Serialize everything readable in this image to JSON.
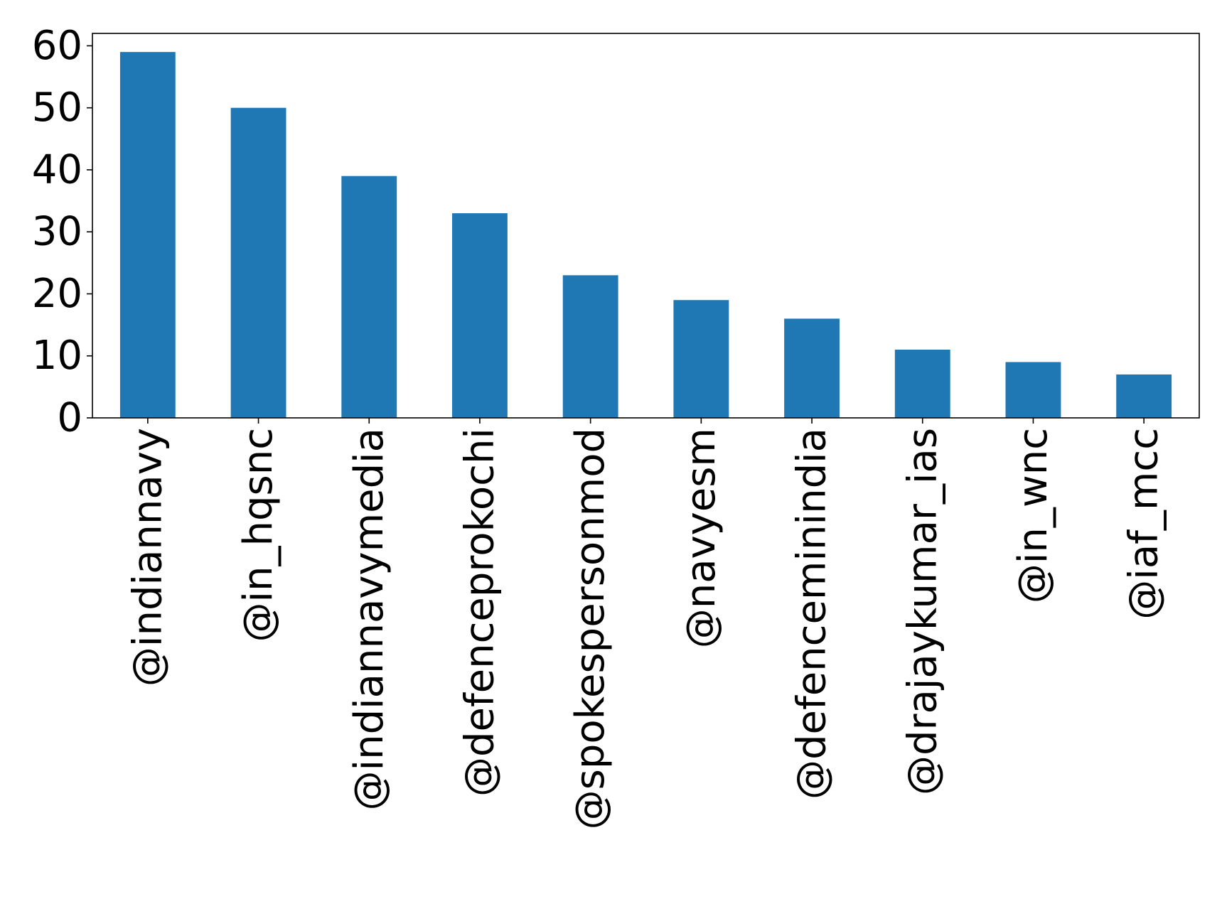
{
  "chart_data": {
    "type": "bar",
    "categories": [
      "@indiannavy",
      "@in_hqsnc",
      "@indiannavymedia",
      "@defenceprokochi",
      "@spokespersonmod",
      "@navyesm",
      "@defenceminindia",
      "@drajaykumar_ias",
      "@in_wnc",
      "@iaf_mcc"
    ],
    "values": [
      59,
      50,
      39,
      33,
      23,
      19,
      16,
      11,
      9,
      7
    ],
    "yticks": [
      "0",
      "10",
      "20",
      "30",
      "40",
      "50",
      "60"
    ],
    "ylim": [
      0,
      62
    ],
    "title": "",
    "xlabel": "",
    "ylabel": "",
    "grid": false,
    "bar_color": "#1f77b4"
  }
}
